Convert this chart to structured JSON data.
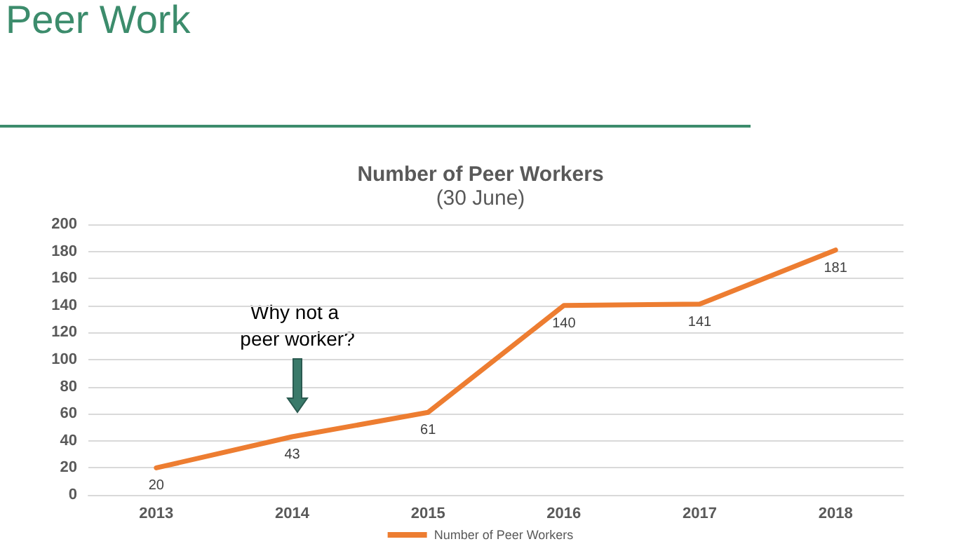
{
  "chart_data": {
    "type": "line",
    "title": "Number of Peer Workers",
    "subtitle": "(30 June)",
    "annotations": [
      "Peer Work",
      "Why not a peer worker?"
    ],
    "categories": [
      "2013",
      "2014",
      "2015",
      "2016",
      "2017",
      "2018"
    ],
    "series": [
      {
        "name": "Number of Peer Workers",
        "color": "#ed7d31",
        "values": [
          20,
          43,
          61,
          140,
          141,
          181
        ]
      }
    ],
    "ylim": [
      0,
      200
    ],
    "yticks": [
      0,
      20,
      40,
      60,
      80,
      100,
      120,
      140,
      160,
      180,
      200
    ],
    "grid": "y",
    "legend": "bottom",
    "data_labels": true,
    "marker": "none",
    "line_style": "solid"
  }
}
